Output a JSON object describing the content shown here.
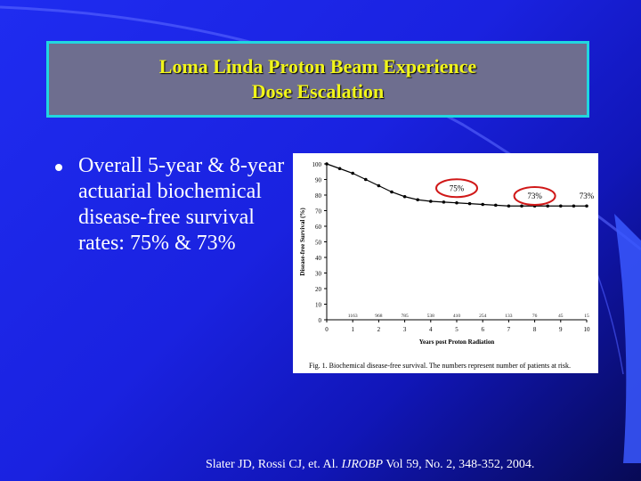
{
  "slide": {
    "title_line1": "Loma Linda Proton Beam Experience",
    "title_line2": "Dose Escalation",
    "bullet_text": "Overall 5-year & 8-year actuarial biochemical disease-free survival rates: 75% & 73%",
    "citation_pre": "Slater JD, Rossi CJ, et. Al. ",
    "citation_journal": "IJROBP",
    "citation_post": "  Vol 59, No. 2, 348-352, 2004."
  },
  "colors": {
    "background": "#1a22e0",
    "title_fill": "#6e6e8f",
    "title_border": "#21d6df",
    "title_text": "#f1f51a",
    "circle_marker": "#d01818"
  },
  "chart_data": {
    "type": "line",
    "ylabel": "Disease-free Survival (%)",
    "xlabel": "Years post Proton Radiation",
    "caption": "Fig. 1. Biochemical disease-free survival. The numbers represent number of patients at risk.",
    "xlim": [
      0,
      10
    ],
    "ylim": [
      0,
      100
    ],
    "xticks": [
      0,
      1,
      2,
      3,
      4,
      5,
      6,
      7,
      8,
      9,
      10
    ],
    "yticks": [
      0,
      10,
      20,
      30,
      40,
      50,
      60,
      70,
      80,
      90,
      100
    ],
    "series": [
      {
        "x": [
          0,
          0.5,
          1,
          1.5,
          2,
          2.5,
          3,
          3.5,
          4,
          4.5,
          5,
          5.5,
          6,
          6.5,
          7,
          7.5,
          8,
          8.5,
          9,
          9.5,
          10
        ],
        "values": [
          100,
          97,
          94,
          90,
          86,
          82,
          79,
          77,
          76,
          75.5,
          75,
          74.5,
          74,
          73.5,
          73,
          73,
          73,
          73,
          73,
          73,
          73
        ]
      }
    ],
    "at_risk": {
      "x": [
        1,
        2,
        3,
        4,
        5,
        6,
        7,
        8,
        9,
        10
      ],
      "labels": [
        "1163",
        "968",
        "785",
        "538",
        "410",
        "254",
        "133",
        "76",
        "45",
        "15"
      ]
    },
    "annotations": [
      {
        "x": 5,
        "y": 85,
        "text": "75%",
        "circled": true
      },
      {
        "x": 8,
        "y": 80,
        "text": "73%",
        "circled": true
      },
      {
        "x": 10,
        "y": 80,
        "text": "73%",
        "circled": false
      }
    ]
  }
}
